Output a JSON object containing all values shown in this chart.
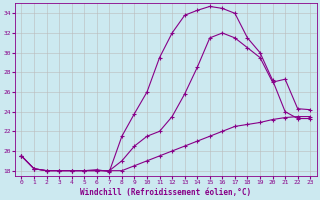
{
  "xlabel": "Windchill (Refroidissement éolien,°C)",
  "background_color": "#cce9f0",
  "line_color": "#880088",
  "grid_color": "#bbbbbb",
  "xlim": [
    -0.5,
    23.5
  ],
  "ylim": [
    17.5,
    35.0
  ],
  "yticks": [
    18,
    20,
    22,
    24,
    26,
    28,
    30,
    32,
    34
  ],
  "xticks": [
    0,
    1,
    2,
    3,
    4,
    5,
    6,
    7,
    8,
    9,
    10,
    11,
    12,
    13,
    14,
    15,
    16,
    17,
    18,
    19,
    20,
    21,
    22,
    23
  ],
  "line1_x": [
    0,
    1,
    2,
    3,
    4,
    5,
    6,
    7,
    8,
    9,
    10,
    11,
    12,
    13,
    14,
    15,
    16,
    17,
    18,
    19,
    20,
    21,
    22,
    23
  ],
  "line1_y": [
    19.5,
    18.2,
    18.0,
    18.0,
    18.0,
    18.0,
    18.0,
    18.0,
    19.0,
    20.5,
    21.5,
    22.0,
    23.5,
    25.8,
    28.5,
    31.5,
    32.0,
    31.5,
    30.5,
    29.5,
    27.0,
    27.3,
    24.3,
    24.2
  ],
  "line2_x": [
    0,
    1,
    2,
    3,
    4,
    5,
    6,
    7,
    8,
    9,
    10,
    11,
    12,
    13,
    14,
    15,
    16,
    17,
    18,
    19,
    20,
    21,
    22,
    23
  ],
  "line2_y": [
    19.5,
    18.2,
    18.0,
    18.0,
    18.0,
    18.0,
    18.1,
    17.9,
    21.5,
    23.8,
    26.0,
    29.5,
    32.0,
    33.8,
    34.3,
    34.7,
    34.5,
    34.0,
    31.5,
    30.0,
    27.2,
    24.0,
    23.3,
    23.3
  ],
  "line3_x": [
    0,
    1,
    2,
    3,
    4,
    5,
    6,
    7,
    8,
    9,
    10,
    11,
    12,
    13,
    14,
    15,
    16,
    17,
    18,
    19,
    20,
    21,
    22,
    23
  ],
  "line3_y": [
    19.5,
    18.2,
    18.0,
    18.0,
    18.0,
    18.0,
    18.0,
    18.0,
    18.0,
    18.5,
    19.0,
    19.5,
    20.0,
    20.5,
    21.0,
    21.5,
    22.0,
    22.5,
    22.7,
    22.9,
    23.2,
    23.4,
    23.5,
    23.5
  ]
}
